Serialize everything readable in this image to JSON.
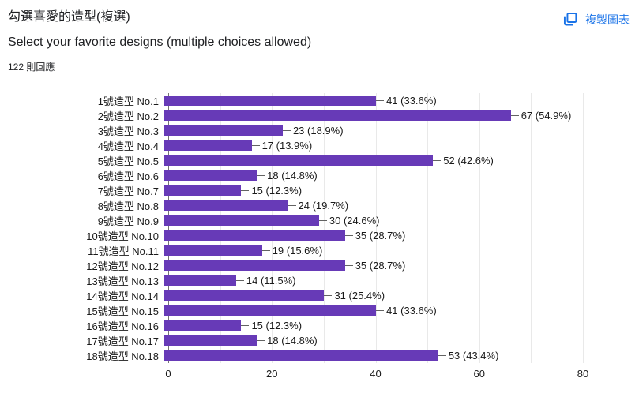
{
  "header": {
    "title_zh": "勾選喜愛的造型(複選)",
    "title_en": "Select your favorite designs (multiple choices allowed)",
    "responses": "122 則回應"
  },
  "toolbar": {
    "copy_label": "複製圖表",
    "copy_icon": "copy-icon",
    "accent_color": "#1a73e8"
  },
  "chart_data": {
    "type": "bar",
    "orientation": "horizontal",
    "title": "勾選喜愛的造型(複選) Select your favorite designs (multiple choices allowed)",
    "categories": [
      "1號造型 No.1",
      "2號造型 No.2",
      "3號造型 No.3",
      "4號造型 No.4",
      "5號造型 No.5",
      "6號造型 No.6",
      "7號造型 No.7",
      "8號造型 No.8",
      "9號造型 No.9",
      "10號造型 No.10",
      "11號造型 No.11",
      "12號造型 No.12",
      "13號造型 No.13",
      "14號造型 No.14",
      "15號造型 No.15",
      "16號造型 No.16",
      "17號造型 No.17",
      "18號造型 No.18"
    ],
    "values": [
      41,
      67,
      23,
      17,
      52,
      18,
      15,
      24,
      30,
      35,
      19,
      35,
      14,
      31,
      41,
      15,
      18,
      53
    ],
    "annotations": [
      "41 (33.6%)",
      "67 (54.9%)",
      "23 (18.9%)",
      "17 (13.9%)",
      "52 (42.6%)",
      "18 (14.8%)",
      "15 (12.3%)",
      "24 (19.7%)",
      "30 (24.6%)",
      "35 (28.7%)",
      "19 (15.6%)",
      "35 (28.7%)",
      "14 (11.5%)",
      "31 (25.4%)",
      "41 (33.6%)",
      "15 (12.3%)",
      "18 (14.8%)",
      "53 (43.4%)"
    ],
    "xlabel": "",
    "ylabel": "",
    "xlim": [
      0,
      80
    ],
    "xticks": [
      0,
      20,
      40,
      60,
      80
    ],
    "gridline_step": 10,
    "grid": true,
    "legend_position": "none",
    "bar_color": "#673ab7",
    "gridline_color": "#e9e9e9",
    "axis_color": "#757575"
  }
}
